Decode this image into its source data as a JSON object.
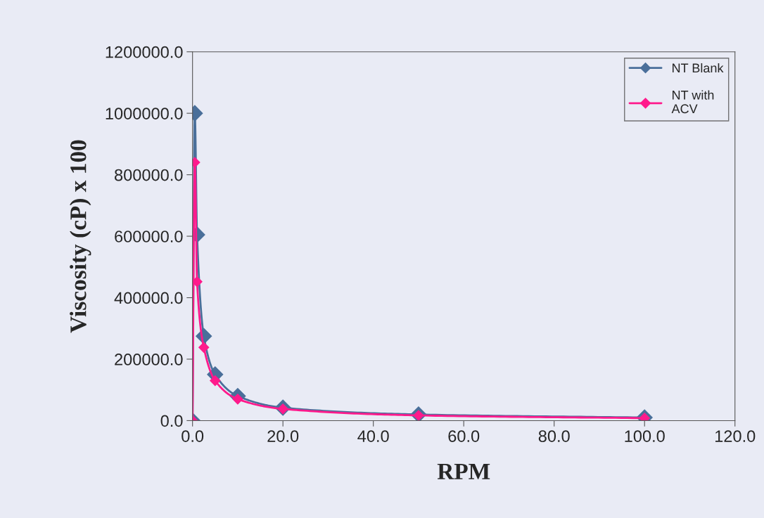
{
  "chart_data": {
    "type": "line",
    "xlabel": "RPM",
    "ylabel": "Viscosity (cP) x 100",
    "x": [
      0,
      0.5,
      1,
      2.5,
      5,
      10,
      20,
      50,
      100
    ],
    "series": [
      {
        "name": "NT Blank",
        "color": "#4a6f9a",
        "values": [
          0,
          1000000,
          605000,
          275000,
          150000,
          80000,
          42000,
          20000,
          10000
        ]
      },
      {
        "name": "NT with\nACV",
        "color": "#ff1a8c",
        "values": [
          0,
          840000,
          452000,
          238000,
          130000,
          70000,
          38000,
          17000,
          8000
        ]
      }
    ],
    "xlim": [
      0,
      120
    ],
    "xticks": [
      {
        "value": 0,
        "label": "0.0"
      },
      {
        "value": 20,
        "label": "20.0"
      },
      {
        "value": 40,
        "label": "40.0"
      },
      {
        "value": 60,
        "label": "60.0"
      },
      {
        "value": 80,
        "label": "80.0"
      },
      {
        "value": 100,
        "label": "100.0"
      },
      {
        "value": 120,
        "label": "120.0"
      }
    ],
    "ylim": [
      0,
      1200000
    ],
    "yticks": [
      {
        "value": 0,
        "label": "0.0"
      },
      {
        "value": 200000,
        "label": "200000.0"
      },
      {
        "value": 400000,
        "label": "400000.0"
      },
      {
        "value": 600000,
        "label": "600000.0"
      },
      {
        "value": 800000,
        "label": "800000.0"
      },
      {
        "value": 1000000,
        "label": "1000000.0"
      },
      {
        "value": 1200000,
        "label": "1200000.0"
      }
    ],
    "marker": "diamond",
    "line_style": "solid",
    "grid": false,
    "legend": "top right"
  }
}
